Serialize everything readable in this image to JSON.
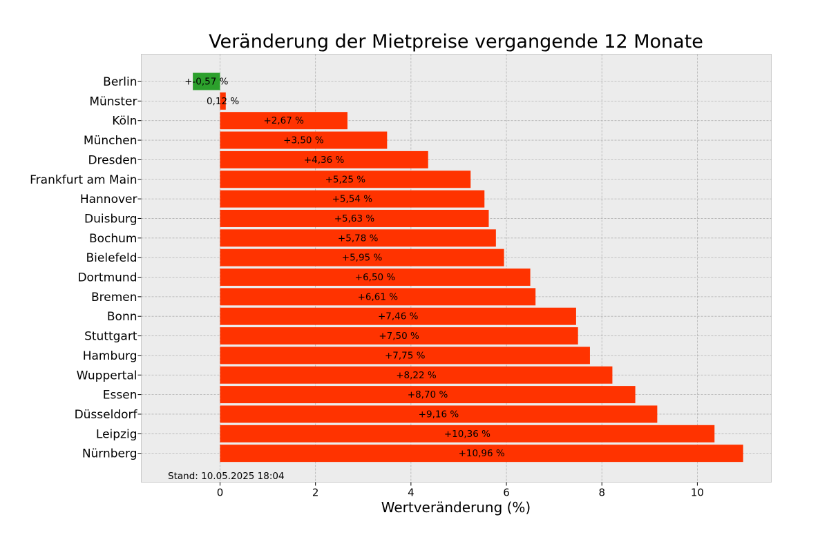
{
  "chart_data": {
    "type": "bar",
    "orientation": "horizontal",
    "title": "Veränderung der Mietpreise vergangende 12 Monate",
    "xlabel": "Wertveränderung (%)",
    "ylabel": "",
    "xlim": [
      -1.65,
      11.55
    ],
    "xticks": [
      0,
      2,
      4,
      6,
      8,
      10
    ],
    "xtick_labels": [
      "0",
      "2",
      "4",
      "6",
      "8",
      "10"
    ],
    "grid": true,
    "legend": "none",
    "colors": {
      "positive": "#ff3300",
      "negative": "#2ca02c",
      "plot_background": "#ececec",
      "grid": "#b0b0b0"
    },
    "categories": [
      "Berlin",
      "Münster",
      "Köln",
      "München",
      "Dresden",
      "Frankfurt am Main",
      "Hannover",
      "Duisburg",
      "Bochum",
      "Bielefeld",
      "Dortmund",
      "Bremen",
      "Bonn",
      "Stuttgart",
      "Hamburg",
      "Wuppertal",
      "Essen",
      "Düsseldorf",
      "Leipzig",
      "Nürnberg"
    ],
    "values": [
      -0.57,
      0.12,
      2.67,
      3.5,
      4.36,
      5.25,
      5.54,
      5.63,
      5.78,
      5.95,
      6.5,
      6.61,
      7.46,
      7.5,
      7.75,
      8.22,
      8.7,
      9.16,
      10.36,
      10.96
    ],
    "data_labels": [
      "+-0,57 %",
      "0,12 %",
      "+2,67 %",
      "+3,50 %",
      "+4,36 %",
      "+5,25 %",
      "+5,54 %",
      "+5,63 %",
      "+5,78 %",
      "+5,95 %",
      "+6,50 %",
      "+6,61 %",
      "+7,46 %",
      "+7,50 %",
      "+7,75 %",
      "+8,22 %",
      "+8,70 %",
      "+9,16 %",
      "+10,36 %",
      "+10,96 %"
    ],
    "annotation": "Stand: 10.05.2025 18:04"
  }
}
